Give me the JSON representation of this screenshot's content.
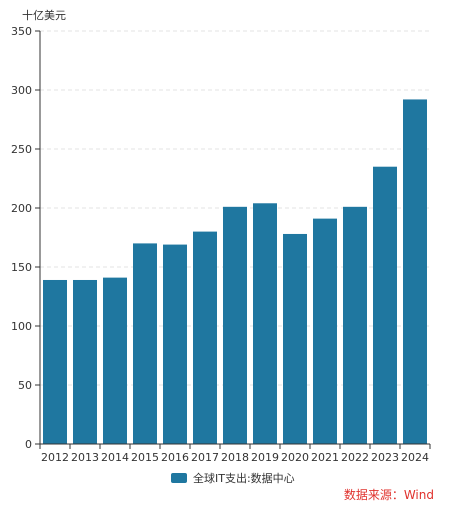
{
  "chart_data": {
    "type": "bar",
    "categories": [
      "2012",
      "2013",
      "2014",
      "2015",
      "2016",
      "2017",
      "2018",
      "2019",
      "2020",
      "2021",
      "2022",
      "2023",
      "2024"
    ],
    "series": [
      {
        "name": "全球IT支出:数据中心",
        "values": [
          139,
          139,
          141,
          170,
          169,
          180,
          201,
          204,
          178,
          191,
          201,
          235,
          292
        ],
        "color": "#1f77a0"
      }
    ],
    "y_unit_label": "十亿美元",
    "ylim": [
      0,
      350
    ],
    "yticks": [
      0,
      50,
      100,
      150,
      200,
      250,
      300,
      350
    ],
    "grid": "horizontal-dashed",
    "legend_position": "bottom-center"
  },
  "legend": {
    "label": "全球IT支出:数据中心",
    "color": "#1f77a0"
  },
  "source": {
    "text": "数据来源：Wind"
  },
  "colors": {
    "axis": "#333333",
    "grid": "#e3e3e3"
  }
}
